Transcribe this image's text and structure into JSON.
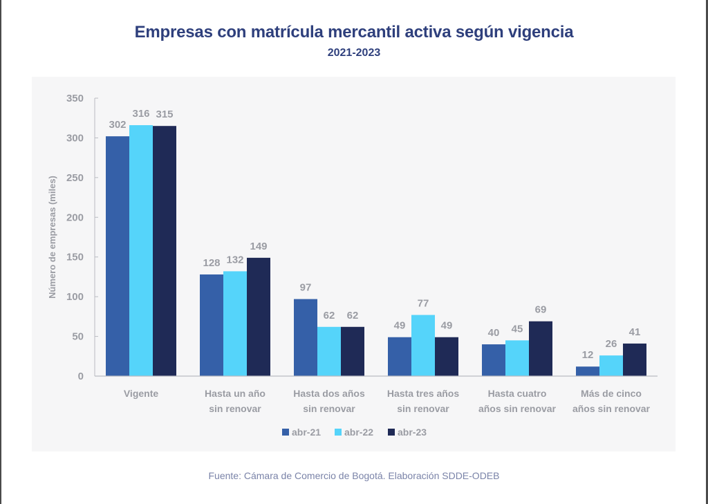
{
  "chart_data": {
    "type": "bar",
    "title": "Empresas con matrícula mercantil activa según vigencia",
    "subtitle": "2021-2023",
    "xlabel": "",
    "ylabel": "Número de empresas (miles)",
    "ylim": [
      0,
      350
    ],
    "yticks": [
      0,
      50,
      100,
      150,
      200,
      250,
      300,
      350
    ],
    "grid": false,
    "legend_position": "bottom-center",
    "categories": [
      [
        "Vigente"
      ],
      [
        "Hasta un año",
        "sin renovar"
      ],
      [
        "Hasta dos años",
        "sin renovar"
      ],
      [
        "Hasta tres años",
        "sin renovar"
      ],
      [
        "Hasta cuatro",
        "años sin renovar"
      ],
      [
        "Más de cinco",
        "años sin renovar"
      ]
    ],
    "series": [
      {
        "name": "abr-21",
        "color": "#3560a8",
        "values": [
          302,
          128,
          97,
          49,
          40,
          12
        ]
      },
      {
        "name": "abr-22",
        "color": "#55d4fa",
        "values": [
          316,
          132,
          62,
          77,
          45,
          26
        ]
      },
      {
        "name": "abr-23",
        "color": "#1f2a56",
        "values": [
          315,
          149,
          62,
          49,
          69,
          41
        ]
      }
    ],
    "source": "Fuente: Cámara de Comercio de Bogotá. Elaboración SDDE-ODEB"
  },
  "colors": {
    "title": "#2e3f7c",
    "axis_text": "#9a9ca3",
    "panel_bg": "#f6f6f7",
    "source_text": "#7a83a8"
  }
}
